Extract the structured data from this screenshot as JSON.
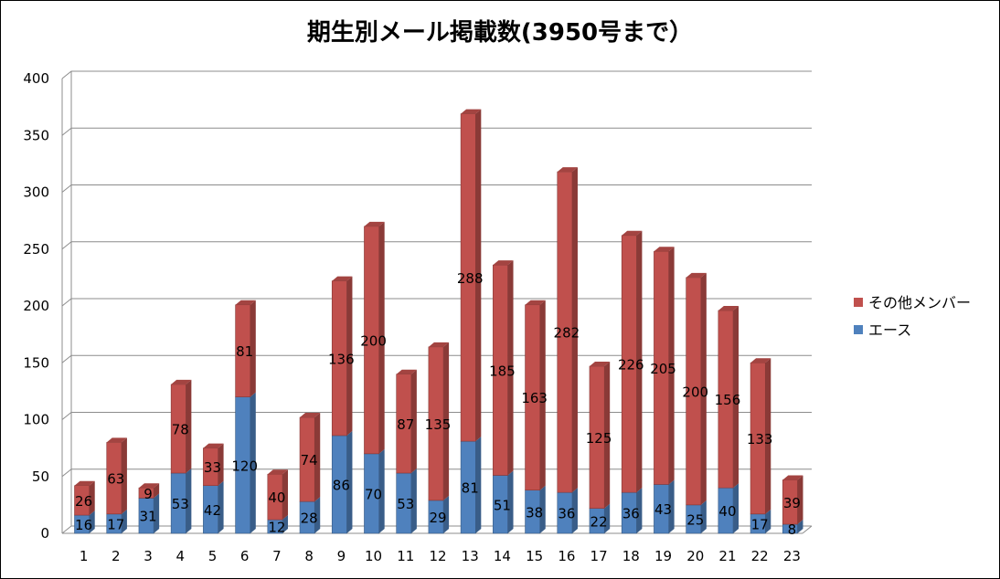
{
  "chart_data": {
    "type": "bar",
    "stacked": true,
    "title": "期生別メール掲載数(3950号まで）",
    "xlabel": "",
    "ylabel": "",
    "ylim": [
      0,
      400
    ],
    "yticks": [
      0,
      50,
      100,
      150,
      200,
      250,
      300,
      350,
      400
    ],
    "grid": true,
    "legend_position": "right",
    "categories": [
      "1",
      "2",
      "3",
      "4",
      "5",
      "6",
      "7",
      "8",
      "9",
      "10",
      "11",
      "12",
      "13",
      "14",
      "15",
      "16",
      "17",
      "18",
      "19",
      "20",
      "21",
      "22",
      "23"
    ],
    "series": [
      {
        "name": "エース",
        "color": "#4f81bd",
        "values": [
          16,
          17,
          31,
          53,
          42,
          120,
          12,
          28,
          86,
          70,
          53,
          29,
          81,
          51,
          38,
          36,
          22,
          36,
          43,
          25,
          40,
          17,
          8
        ]
      },
      {
        "name": "その他メンバー",
        "color": "#c0504d",
        "values": [
          26,
          63,
          9,
          78,
          33,
          81,
          40,
          74,
          136,
          200,
          87,
          135,
          288,
          185,
          163,
          282,
          125,
          226,
          205,
          200,
          156,
          133,
          39
        ]
      }
    ],
    "legend_order": [
      "その他メンバー",
      "エース"
    ]
  }
}
